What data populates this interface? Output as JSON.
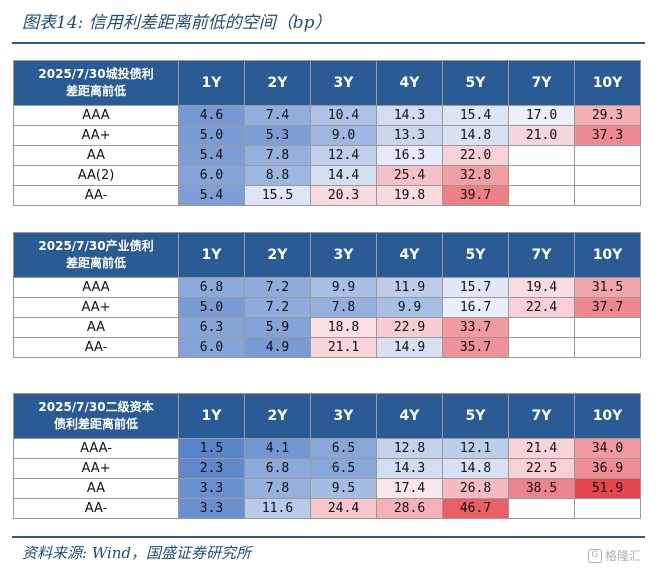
{
  "figure_title": "图表14:  信用利差距离前低的空间（bp）",
  "source": "资料来源: Wind，国盛证券研究所",
  "watermark": "格隆汇",
  "tenors": [
    "1Y",
    "2Y",
    "3Y",
    "4Y",
    "5Y",
    "7Y",
    "10Y"
  ],
  "tables": [
    {
      "id": "chengtou",
      "header_line1": "2025/7/30城投债利",
      "header_line2": "差距离前低",
      "rows": [
        {
          "label": "AAA",
          "values": [
            "4.6",
            "7.4",
            "10.4",
            "14.3",
            "15.4",
            "17.0",
            "29.3"
          ]
        },
        {
          "label": "AA+",
          "values": [
            "5.0",
            "5.3",
            "9.0",
            "13.3",
            "14.8",
            "21.0",
            "37.3"
          ]
        },
        {
          "label": "AA",
          "values": [
            "5.4",
            "7.8",
            "12.4",
            "16.3",
            "22.0",
            "",
            ""
          ]
        },
        {
          "label": "AA(2)",
          "values": [
            "6.0",
            "8.8",
            "14.4",
            "25.4",
            "32.8",
            "",
            ""
          ]
        },
        {
          "label": "AA-",
          "values": [
            "5.4",
            "15.5",
            "20.3",
            "19.8",
            "39.7",
            "",
            ""
          ]
        }
      ]
    },
    {
      "id": "chanye",
      "header_line1": "2025/7/30产业债利",
      "header_line2": "差距离前低",
      "rows": [
        {
          "label": "AAA",
          "values": [
            "6.8",
            "7.2",
            "9.9",
            "11.9",
            "15.7",
            "19.4",
            "31.5"
          ]
        },
        {
          "label": "AA+",
          "values": [
            "5.0",
            "7.2",
            "7.8",
            "9.9",
            "16.7",
            "22.4",
            "37.7"
          ]
        },
        {
          "label": "AA",
          "values": [
            "6.3",
            "5.9",
            "18.8",
            "22.9",
            "33.7",
            "",
            ""
          ]
        },
        {
          "label": "AA-",
          "values": [
            "6.0",
            "4.9",
            "21.1",
            "14.9",
            "35.7",
            "",
            ""
          ]
        }
      ]
    },
    {
      "id": "erji",
      "header_line1": "2025/7/30二级资本",
      "header_line2": "债利差距离前低",
      "rows": [
        {
          "label": "AAA-",
          "values": [
            "1.5",
            "4.1",
            "6.5",
            "12.8",
            "12.1",
            "21.4",
            "34.0"
          ]
        },
        {
          "label": "AA+",
          "values": [
            "2.3",
            "6.8",
            "6.5",
            "14.3",
            "14.8",
            "22.5",
            "36.9"
          ]
        },
        {
          "label": "AA",
          "values": [
            "3.3",
            "7.8",
            "9.5",
            "17.4",
            "26.8",
            "38.5",
            "51.9"
          ]
        },
        {
          "label": "AA-",
          "values": [
            "3.3",
            "11.6",
            "24.4",
            "28.6",
            "46.7",
            "",
            ""
          ]
        }
      ]
    }
  ]
}
